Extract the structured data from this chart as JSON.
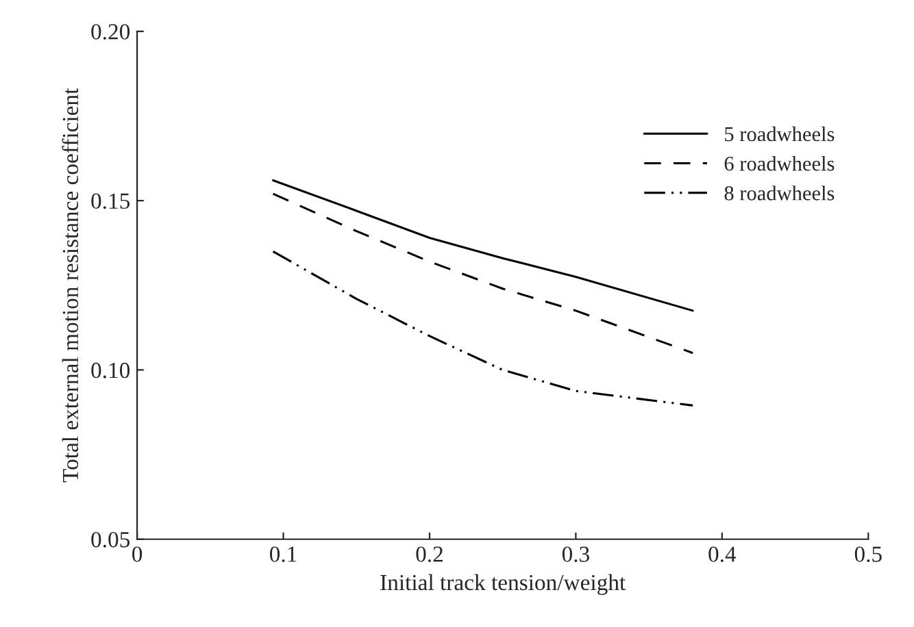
{
  "chart_data": {
    "type": "line",
    "xlabel": "Initial track tension/weight",
    "ylabel": "Total external motion resistance coefficient",
    "xlim": [
      0,
      0.5
    ],
    "xticks": [
      {
        "value": 0,
        "label": "0"
      },
      0.1,
      0.2,
      0.3,
      0.4,
      0.5
    ],
    "ylim": [
      0.05,
      0.2
    ],
    "yticks": [
      {
        "value": 0.05,
        "label": "0.05"
      },
      {
        "value": 0.1,
        "label": "0.10"
      },
      {
        "value": 0.15,
        "label": "0.15"
      },
      {
        "value": 0.2,
        "label": "0.20"
      }
    ],
    "grid": false,
    "legend": "top right",
    "series": [
      {
        "name": "5 roadwheels",
        "color": "#000000",
        "line_style": "solid",
        "x": [
          0.093,
          0.15,
          0.2,
          0.25,
          0.3,
          0.38
        ],
        "values": [
          0.156,
          0.147,
          0.139,
          0.133,
          0.1275,
          0.1175
        ]
      },
      {
        "name": "6 roadwheels",
        "color": "#000000",
        "line_style": "dashed",
        "x": [
          0.093,
          0.15,
          0.2,
          0.25,
          0.3,
          0.38
        ],
        "values": [
          0.152,
          0.141,
          0.132,
          0.124,
          0.1175,
          0.105
        ]
      },
      {
        "name": "8 roadwheels",
        "color": "#000000",
        "line_style": "dashdot",
        "x": [
          0.093,
          0.15,
          0.2,
          0.25,
          0.3,
          0.38
        ],
        "values": [
          0.135,
          0.121,
          0.11,
          0.1,
          0.0938,
          0.0895
        ]
      }
    ]
  }
}
